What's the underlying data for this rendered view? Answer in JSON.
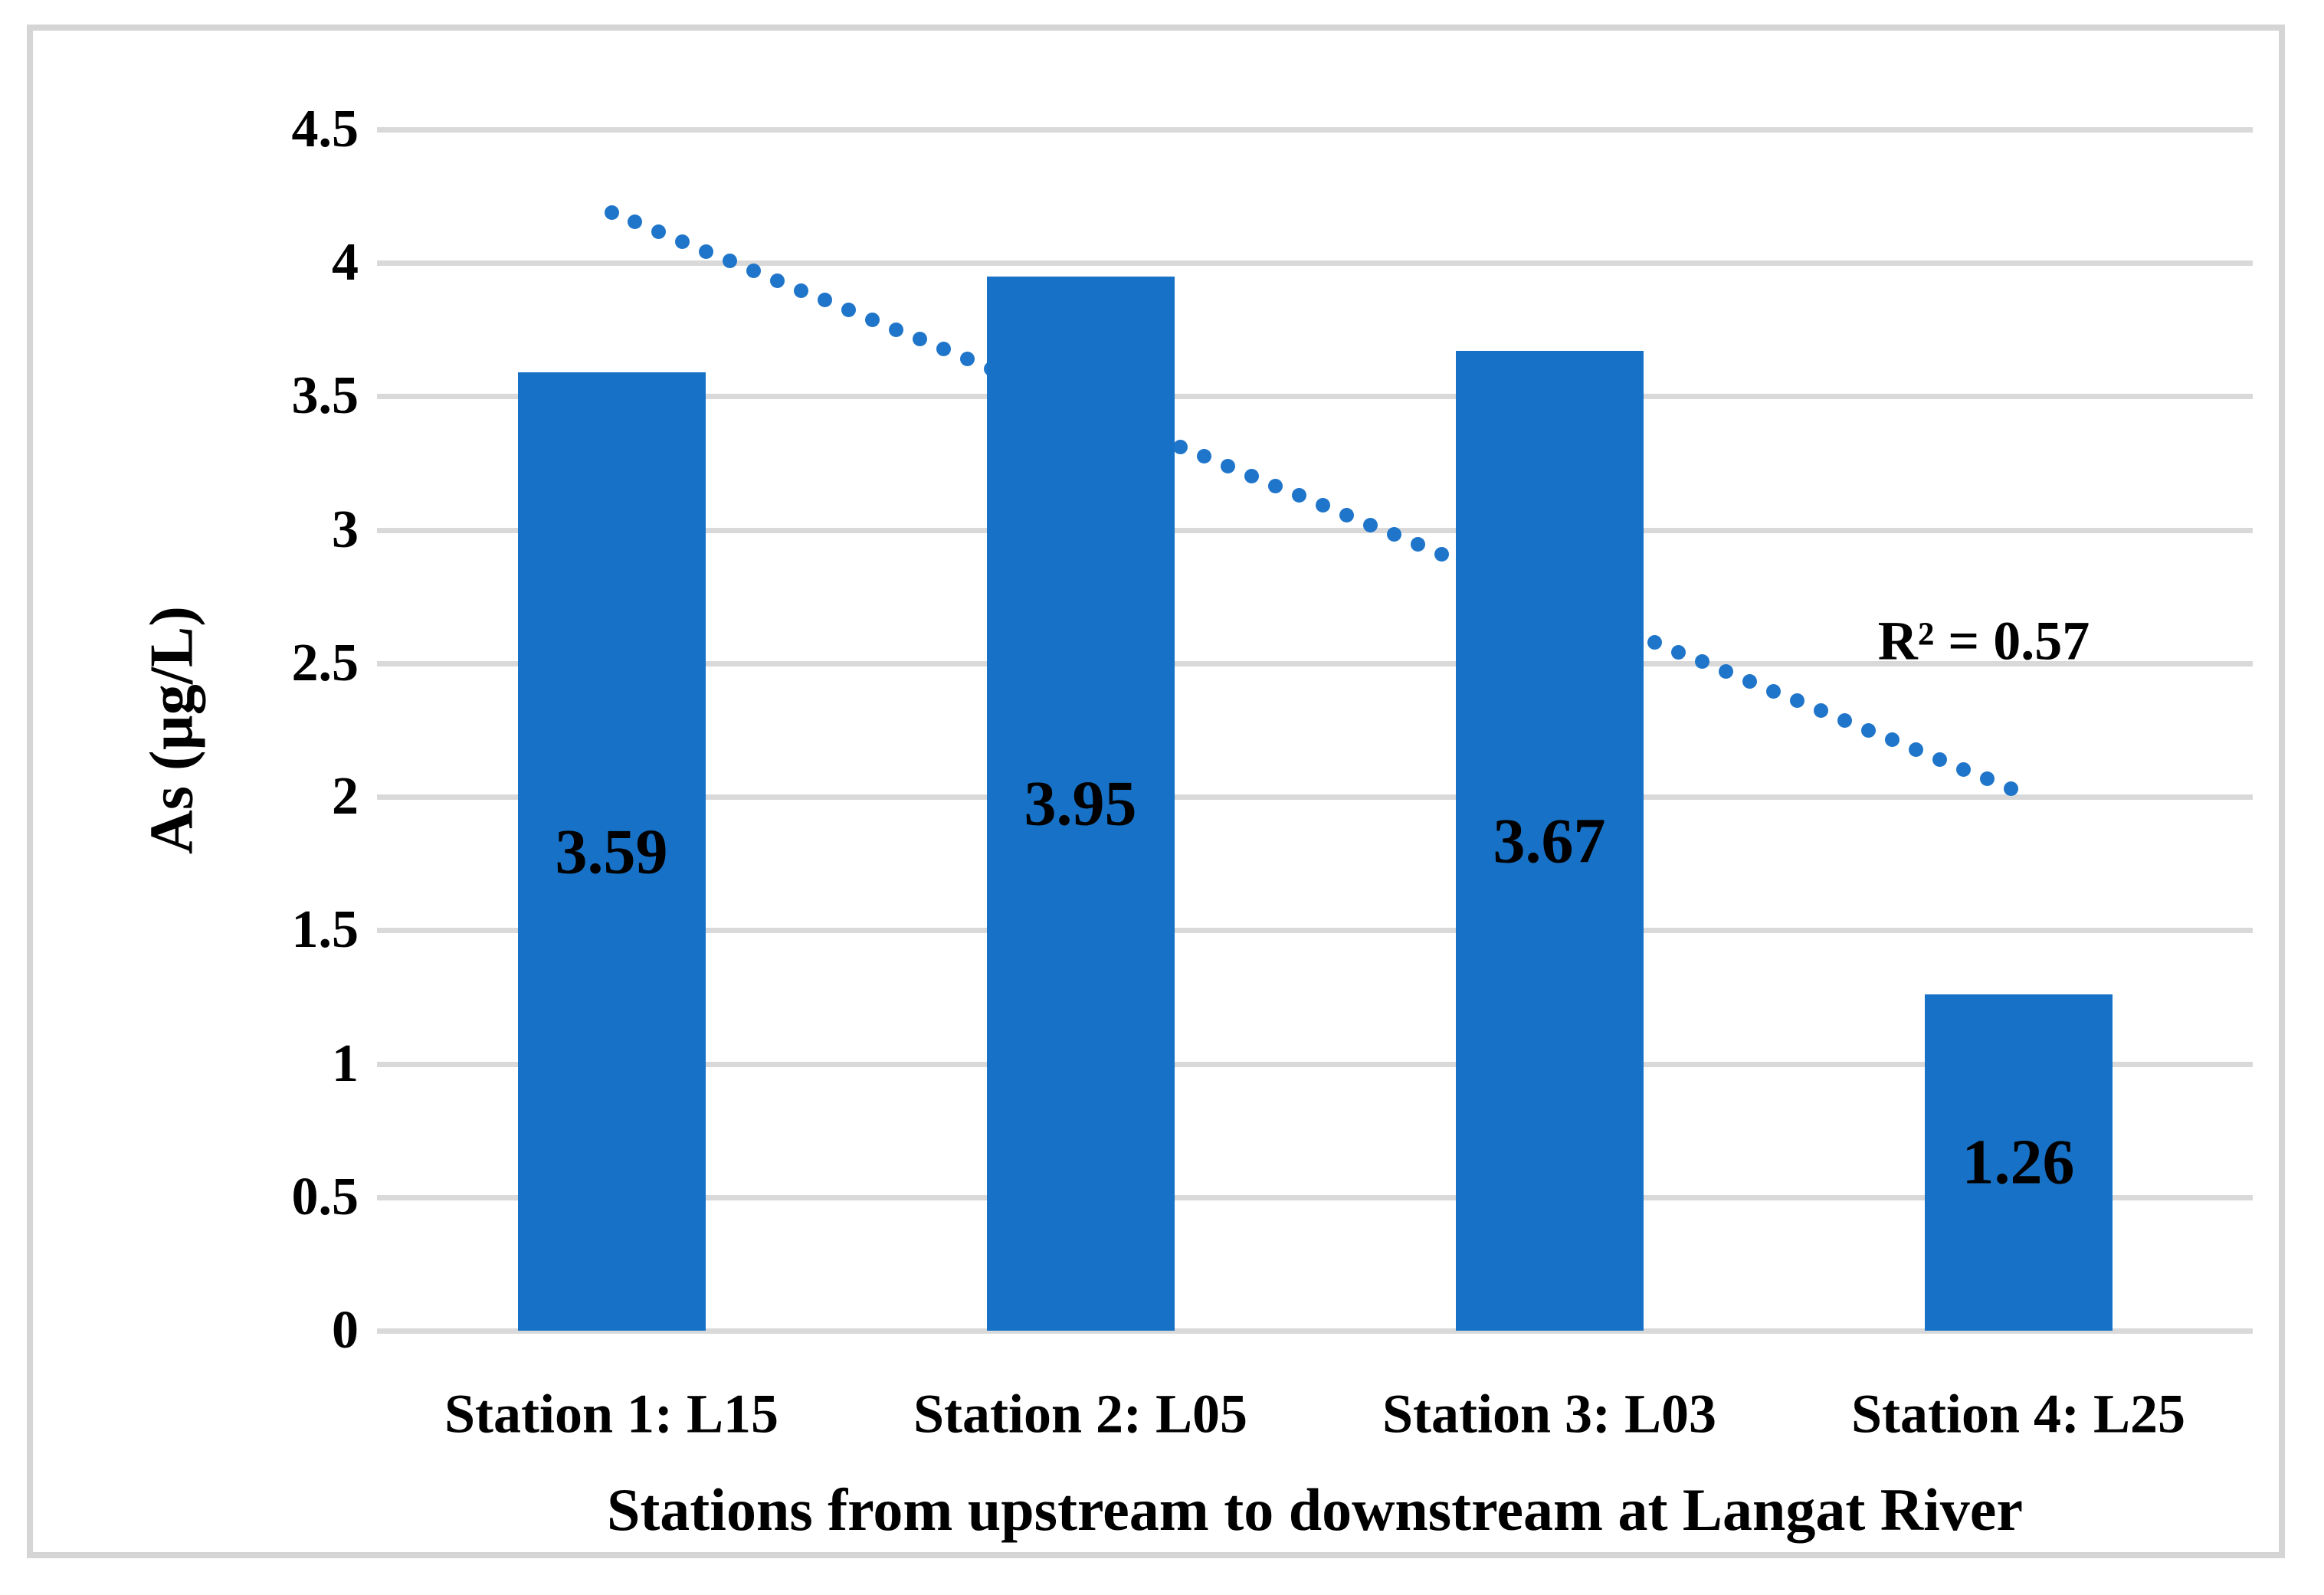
{
  "chart_data": {
    "type": "bar",
    "categories": [
      "Station 1: L15",
      "Station 2: L05",
      "Station 3: L03",
      "Station 4: L25"
    ],
    "values": [
      3.59,
      3.95,
      3.67,
      1.26
    ],
    "bar_labels": [
      "3.59",
      "3.95",
      "3.67",
      "1.26"
    ],
    "xlabel": "Stations from upstream to downstream at Langat River",
    "ylabel": "As (µg/L)",
    "ylim": [
      0,
      4.5
    ],
    "ytick_step": 0.5,
    "ytick_labels": [
      "0",
      "0.5",
      "1",
      "1.5",
      "2",
      "2.5",
      "3",
      "3.5",
      "4",
      "4.5"
    ],
    "grid": true,
    "legend": "none",
    "trendline": {
      "style": "dotted",
      "start_value": 4.19,
      "end_value": 2.03,
      "annotation": "R² = 0.57"
    },
    "colors": {
      "bar": "#1772C7",
      "trend_dot": "#1F75C9",
      "gridline": "#D9D9D9",
      "frame_border": "#D5D5D5",
      "text": "#000000"
    }
  }
}
